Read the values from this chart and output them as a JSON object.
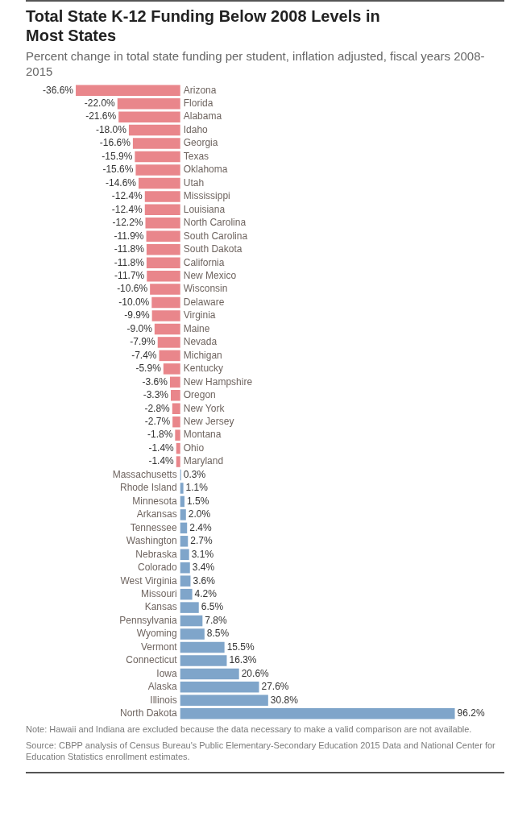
{
  "chart_data": {
    "type": "bar",
    "orientation": "horizontal",
    "title": "Total State K-12 Funding Below 2008 Levels in Most States",
    "subtitle": "Percent change in total state funding per student, inflation adjusted, fiscal years 2008-2015",
    "categories": [
      "Arizona",
      "Florida",
      "Alabama",
      "Idaho",
      "Georgia",
      "Texas",
      "Oklahoma",
      "Utah",
      "Mississippi",
      "Louisiana",
      "North Carolina",
      "South Carolina",
      "South Dakota",
      "California",
      "New Mexico",
      "Wisconsin",
      "Delaware",
      "Virginia",
      "Maine",
      "Nevada",
      "Michigan",
      "Kentucky",
      "New Hampshire",
      "Oregon",
      "New York",
      "New Jersey",
      "Montana",
      "Ohio",
      "Maryland",
      "Massachusetts",
      "Rhode Island",
      "Minnesota",
      "Arkansas",
      "Tennessee",
      "Washington",
      "Nebraska",
      "Colorado",
      "West Virginia",
      "Missouri",
      "Kansas",
      "Pennsylvania",
      "Wyoming",
      "Vermont",
      "Connecticut",
      "Iowa",
      "Alaska",
      "Illinois",
      "North Dakota"
    ],
    "values": [
      -36.6,
      -22.0,
      -21.6,
      -18.0,
      -16.6,
      -15.9,
      -15.6,
      -14.6,
      -12.4,
      -12.4,
      -12.2,
      -11.9,
      -11.8,
      -11.8,
      -11.7,
      -10.6,
      -10.0,
      -9.9,
      -9.0,
      -7.9,
      -7.4,
      -5.9,
      -3.6,
      -3.3,
      -2.8,
      -2.7,
      -1.8,
      -1.4,
      -1.4,
      0.3,
      1.1,
      1.5,
      2.0,
      2.4,
      2.7,
      3.1,
      3.4,
      3.6,
      4.2,
      6.5,
      7.8,
      8.5,
      15.5,
      16.3,
      20.6,
      27.6,
      30.8,
      96.2
    ],
    "value_labels": [
      "-36.6%",
      "-22.0%",
      "-21.6%",
      "-18.0%",
      "-16.6%",
      "-15.9%",
      "-15.6%",
      "-14.6%",
      "-12.4%",
      "-12.4%",
      "-12.2%",
      "-11.9%",
      "-11.8%",
      "-11.8%",
      "-11.7%",
      "-10.6%",
      "-10.0%",
      "-9.9%",
      "-9.0%",
      "-7.9%",
      "-7.4%",
      "-5.9%",
      "-3.6%",
      "-3.3%",
      "-2.8%",
      "-2.7%",
      "-1.8%",
      "-1.4%",
      "-1.4%",
      "0.3%",
      "1.1%",
      "1.5%",
      "2.0%",
      "2.4%",
      "2.7%",
      "3.1%",
      "3.4%",
      "3.6%",
      "4.2%",
      "6.5%",
      "7.8%",
      "8.5%",
      "15.5%",
      "16.3%",
      "20.6%",
      "27.6%",
      "30.8%",
      "96.2%"
    ],
    "colors": [
      "#e9868b",
      "#e9868b",
      "#e9868b",
      "#e9868b",
      "#e9868b",
      "#e9868b",
      "#e9868b",
      "#e9868b",
      "#e9868b",
      "#e9868b",
      "#e9868b",
      "#e9868b",
      "#e9868b",
      "#e9868b",
      "#e9868b",
      "#e9868b",
      "#e9868b",
      "#e9868b",
      "#e9868b",
      "#e9868b",
      "#e9868b",
      "#e9868b",
      "#e9868b",
      "#e9868b",
      "#e9868b",
      "#e9868b",
      "#e9868b",
      "#e9868b",
      "#e9868b",
      "#7fa5ca",
      "#7fa5ca",
      "#7fa5ca",
      "#7fa5ca",
      "#7fa5ca",
      "#7fa5ca",
      "#7fa5ca",
      "#7fa5ca",
      "#7fa5ca",
      "#7fa5ca",
      "#7fa5ca",
      "#7fa5ca",
      "#7fa5ca",
      "#7fa5ca",
      "#7fa5ca",
      "#7fa5ca",
      "#7fa5ca",
      "#7fa5ca",
      "#7fa5ca"
    ],
    "annotations": [
      "Note: Hawaii and Indiana are excluded because the data necessary to make a valid comparison are not available.",
      "Source: CBPP analysis of Census Bureau's Public Elementary-Secondary Education 2015 Data and National Center for Education Statistics enrollment estimates."
    ]
  }
}
